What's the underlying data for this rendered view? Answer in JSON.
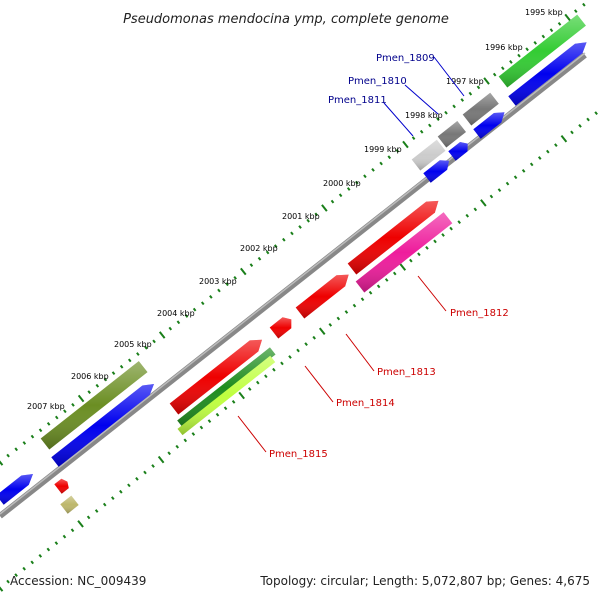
{
  "title": "Pseudomonas mendocina ymp, complete genome",
  "accession": "Accession: NC_009439",
  "topology": "Topology: circular; Length: 5,072,807 bp; Genes: 4,675",
  "ticks": [
    "1995 kbp",
    "1996 kbp",
    "1997 kbp",
    "1998 kbp",
    "1999 kbp",
    "2000 kbp",
    "2001 kbp",
    "2002 kbp",
    "2003 kbp",
    "2004 kbp",
    "2005 kbp",
    "2006 kbp",
    "2007 kbp"
  ],
  "labels": {
    "pmen_1809": "Pmen_1809",
    "pmen_1810": "Pmen_1810",
    "pmen_1811": "Pmen_1811",
    "pmen_1812": "Pmen_1812",
    "pmen_1813": "Pmen_1813",
    "pmen_1814": "Pmen_1814",
    "pmen_1815": "Pmen_1815"
  },
  "colors": {
    "blue": "#0000ee",
    "red": "#ee0000",
    "magenta": "#ee1c9c",
    "green": "#33cc33",
    "olive": "#6b8e23",
    "dark_green": "#1e8c1e",
    "lime": "#bfff3f",
    "gray": "#777777",
    "light_gray": "#cccccc",
    "khaki": "#bdb76b",
    "label_blue": "#00008b",
    "label_red": "#cc0000",
    "backbone": "#888888"
  }
}
